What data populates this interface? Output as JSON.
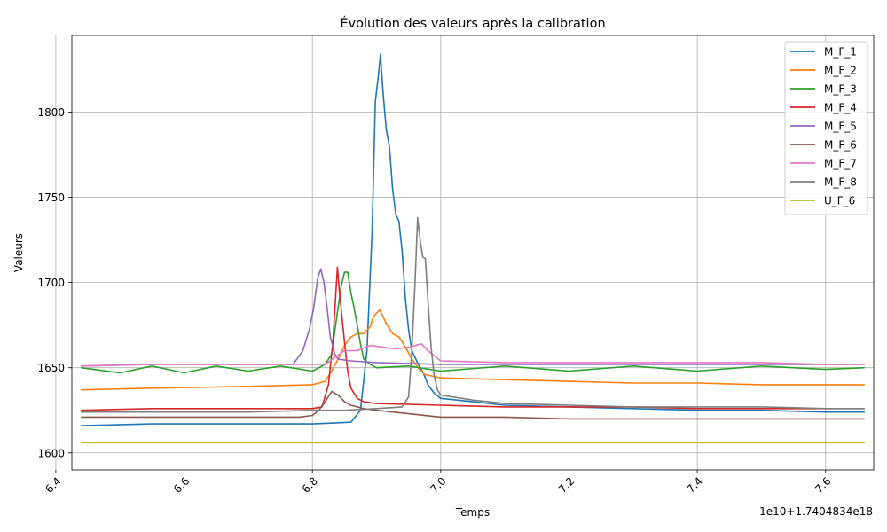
{
  "chart_data": {
    "type": "line",
    "title": "Évolution des valeurs après la calibration",
    "xlabel": "Temps",
    "ylabel": "Valeurs",
    "x_offset_label": "1e10+1.7404834e18",
    "xlim": [
      6.425,
      7.675
    ],
    "ylim": [
      1590,
      1845
    ],
    "x_ticks": [
      6.4,
      6.6,
      6.8,
      7.0,
      7.2,
      7.4,
      7.6
    ],
    "x_tick_labels": [
      "6.4",
      "6.6",
      "6.8",
      "7.0",
      "7.2",
      "7.4",
      "7.6"
    ],
    "y_ticks": [
      1600,
      1650,
      1700,
      1750,
      1800
    ],
    "y_tick_labels": [
      "1600",
      "1650",
      "1700",
      "1750",
      "1800"
    ],
    "grid": true,
    "legend_position": "upper-right",
    "series": [
      {
        "name": "M_F_1",
        "color": "#1f77b4",
        "points": [
          [
            6.44,
            1616
          ],
          [
            6.55,
            1617
          ],
          [
            6.7,
            1617
          ],
          [
            6.8,
            1617
          ],
          [
            6.86,
            1618
          ],
          [
            6.875,
            1625
          ],
          [
            6.885,
            1660
          ],
          [
            6.893,
            1730
          ],
          [
            6.898,
            1806
          ],
          [
            6.903,
            1822
          ],
          [
            6.906,
            1834
          ],
          [
            6.91,
            1812
          ],
          [
            6.915,
            1790
          ],
          [
            6.92,
            1780
          ],
          [
            6.925,
            1755
          ],
          [
            6.93,
            1740
          ],
          [
            6.935,
            1736
          ],
          [
            6.94,
            1718
          ],
          [
            6.945,
            1690
          ],
          [
            6.95,
            1672
          ],
          [
            6.955,
            1660
          ],
          [
            6.96,
            1656
          ],
          [
            6.965,
            1652
          ],
          [
            6.97,
            1649
          ],
          [
            6.975,
            1645
          ],
          [
            6.98,
            1640
          ],
          [
            6.99,
            1635
          ],
          [
            7.0,
            1632
          ],
          [
            7.05,
            1630
          ],
          [
            7.1,
            1628
          ],
          [
            7.2,
            1627
          ],
          [
            7.3,
            1626
          ],
          [
            7.4,
            1625
          ],
          [
            7.5,
            1625
          ],
          [
            7.6,
            1624
          ],
          [
            7.66,
            1624
          ]
        ]
      },
      {
        "name": "M_F_2",
        "color": "#ff7f0e",
        "points": [
          [
            6.44,
            1637
          ],
          [
            6.55,
            1638
          ],
          [
            6.7,
            1639
          ],
          [
            6.8,
            1640
          ],
          [
            6.82,
            1642
          ],
          [
            6.83,
            1648
          ],
          [
            6.84,
            1655
          ],
          [
            6.85,
            1663
          ],
          [
            6.86,
            1668
          ],
          [
            6.87,
            1670
          ],
          [
            6.88,
            1670
          ],
          [
            6.89,
            1674
          ],
          [
            6.895,
            1680
          ],
          [
            6.905,
            1684
          ],
          [
            6.915,
            1676
          ],
          [
            6.925,
            1670
          ],
          [
            6.935,
            1668
          ],
          [
            6.945,
            1662
          ],
          [
            6.955,
            1655
          ],
          [
            6.965,
            1650
          ],
          [
            6.975,
            1646
          ],
          [
            7.0,
            1644
          ],
          [
            7.1,
            1643
          ],
          [
            7.2,
            1642
          ],
          [
            7.3,
            1641
          ],
          [
            7.4,
            1641
          ],
          [
            7.5,
            1640
          ],
          [
            7.6,
            1640
          ],
          [
            7.66,
            1640
          ]
        ]
      },
      {
        "name": "M_F_3",
        "color": "#2ca02c",
        "points": [
          [
            6.44,
            1650
          ],
          [
            6.5,
            1647
          ],
          [
            6.55,
            1651
          ],
          [
            6.6,
            1647
          ],
          [
            6.65,
            1651
          ],
          [
            6.7,
            1648
          ],
          [
            6.75,
            1651
          ],
          [
            6.8,
            1648
          ],
          [
            6.82,
            1652
          ],
          [
            6.83,
            1658
          ],
          [
            6.838,
            1680
          ],
          [
            6.845,
            1698
          ],
          [
            6.85,
            1706
          ],
          [
            6.855,
            1706
          ],
          [
            6.86,
            1694
          ],
          [
            6.865,
            1685
          ],
          [
            6.87,
            1675
          ],
          [
            6.875,
            1664
          ],
          [
            6.88,
            1655
          ],
          [
            6.89,
            1652
          ],
          [
            6.9,
            1650
          ],
          [
            6.95,
            1651
          ],
          [
            7.0,
            1648
          ],
          [
            7.1,
            1651
          ],
          [
            7.2,
            1648
          ],
          [
            7.3,
            1651
          ],
          [
            7.4,
            1648
          ],
          [
            7.5,
            1651
          ],
          [
            7.6,
            1649
          ],
          [
            7.66,
            1650
          ]
        ]
      },
      {
        "name": "M_F_4",
        "color": "#d62728",
        "points": [
          [
            6.44,
            1625
          ],
          [
            6.55,
            1626
          ],
          [
            6.7,
            1626
          ],
          [
            6.8,
            1626
          ],
          [
            6.815,
            1627
          ],
          [
            6.825,
            1640
          ],
          [
            6.832,
            1665
          ],
          [
            6.836,
            1690
          ],
          [
            6.839,
            1709
          ],
          [
            6.842,
            1695
          ],
          [
            6.846,
            1680
          ],
          [
            6.85,
            1665
          ],
          [
            6.855,
            1648
          ],
          [
            6.86,
            1638
          ],
          [
            6.87,
            1632
          ],
          [
            6.88,
            1630
          ],
          [
            6.9,
            1629
          ],
          [
            7.0,
            1628
          ],
          [
            7.1,
            1627
          ],
          [
            7.2,
            1627
          ],
          [
            7.3,
            1627
          ],
          [
            7.4,
            1626
          ],
          [
            7.5,
            1626
          ],
          [
            7.6,
            1626
          ],
          [
            7.66,
            1626
          ]
        ]
      },
      {
        "name": "M_F_5",
        "color": "#9467bd",
        "points": [
          [
            6.44,
            1651
          ],
          [
            6.55,
            1652
          ],
          [
            6.7,
            1652
          ],
          [
            6.77,
            1652
          ],
          [
            6.785,
            1660
          ],
          [
            6.795,
            1672
          ],
          [
            6.802,
            1685
          ],
          [
            6.808,
            1702
          ],
          [
            6.813,
            1708
          ],
          [
            6.818,
            1700
          ],
          [
            6.823,
            1685
          ],
          [
            6.828,
            1668
          ],
          [
            6.835,
            1658
          ],
          [
            6.84,
            1655
          ],
          [
            6.86,
            1654
          ],
          [
            6.9,
            1653
          ],
          [
            7.0,
            1652
          ],
          [
            7.1,
            1652
          ],
          [
            7.2,
            1652
          ],
          [
            7.3,
            1652
          ],
          [
            7.4,
            1652
          ],
          [
            7.5,
            1652
          ],
          [
            7.6,
            1652
          ],
          [
            7.66,
            1652
          ]
        ]
      },
      {
        "name": "M_F_6",
        "color": "#8c564b",
        "points": [
          [
            6.44,
            1621
          ],
          [
            6.55,
            1621
          ],
          [
            6.7,
            1621
          ],
          [
            6.78,
            1621
          ],
          [
            6.8,
            1622
          ],
          [
            6.81,
            1625
          ],
          [
            6.82,
            1630
          ],
          [
            6.83,
            1636
          ],
          [
            6.84,
            1634
          ],
          [
            6.85,
            1630
          ],
          [
            6.86,
            1628
          ],
          [
            6.88,
            1626
          ],
          [
            6.9,
            1625
          ],
          [
            6.95,
            1623
          ],
          [
            7.0,
            1621
          ],
          [
            7.1,
            1621
          ],
          [
            7.2,
            1620
          ],
          [
            7.3,
            1620
          ],
          [
            7.4,
            1620
          ],
          [
            7.5,
            1620
          ],
          [
            7.6,
            1620
          ],
          [
            7.66,
            1620
          ]
        ]
      },
      {
        "name": "M_F_7",
        "color": "#e377c2",
        "points": [
          [
            6.44,
            1651
          ],
          [
            6.55,
            1652
          ],
          [
            6.7,
            1652
          ],
          [
            6.82,
            1652
          ],
          [
            6.835,
            1656
          ],
          [
            6.85,
            1660
          ],
          [
            6.87,
            1660
          ],
          [
            6.89,
            1663
          ],
          [
            6.91,
            1662
          ],
          [
            6.93,
            1661
          ],
          [
            6.95,
            1662
          ],
          [
            6.97,
            1664
          ],
          [
            6.98,
            1660
          ],
          [
            7.0,
            1654
          ],
          [
            7.1,
            1653
          ],
          [
            7.2,
            1653
          ],
          [
            7.3,
            1653
          ],
          [
            7.4,
            1653
          ],
          [
            7.5,
            1653
          ],
          [
            7.6,
            1652
          ],
          [
            7.66,
            1652
          ]
        ]
      },
      {
        "name": "M_F_8",
        "color": "#7f7f7f",
        "points": [
          [
            6.44,
            1624
          ],
          [
            6.55,
            1624
          ],
          [
            6.7,
            1624
          ],
          [
            6.8,
            1625
          ],
          [
            6.85,
            1625
          ],
          [
            6.9,
            1626
          ],
          [
            6.94,
            1627
          ],
          [
            6.95,
            1633
          ],
          [
            6.955,
            1660
          ],
          [
            6.96,
            1700
          ],
          [
            6.964,
            1738
          ],
          [
            6.968,
            1725
          ],
          [
            6.972,
            1715
          ],
          [
            6.976,
            1714
          ],
          [
            6.98,
            1690
          ],
          [
            6.985,
            1662
          ],
          [
            6.99,
            1645
          ],
          [
            6.995,
            1637
          ],
          [
            7.0,
            1634
          ],
          [
            7.05,
            1631
          ],
          [
            7.1,
            1629
          ],
          [
            7.2,
            1628
          ],
          [
            7.3,
            1627
          ],
          [
            7.4,
            1627
          ],
          [
            7.5,
            1627
          ],
          [
            7.6,
            1626
          ],
          [
            7.66,
            1626
          ]
        ]
      },
      {
        "name": "U_F_6",
        "color": "#bcbd22",
        "points": [
          [
            6.44,
            1606
          ],
          [
            6.55,
            1606
          ],
          [
            6.7,
            1606
          ],
          [
            6.8,
            1606
          ],
          [
            6.9,
            1606
          ],
          [
            7.0,
            1606
          ],
          [
            7.1,
            1606
          ],
          [
            7.2,
            1606
          ],
          [
            7.3,
            1606
          ],
          [
            7.4,
            1606
          ],
          [
            7.5,
            1606
          ],
          [
            7.6,
            1606
          ],
          [
            7.66,
            1606
          ]
        ]
      }
    ]
  }
}
